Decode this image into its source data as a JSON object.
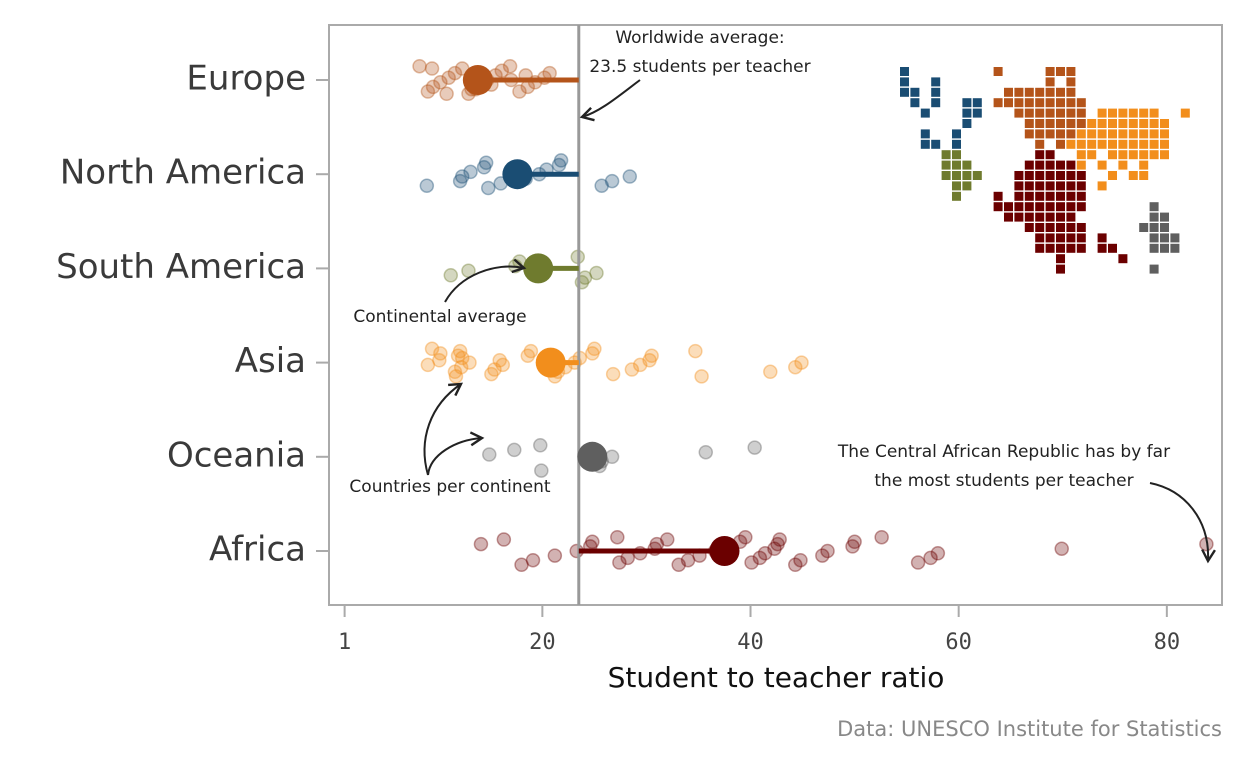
{
  "chart_data": {
    "type": "strip",
    "x_label": "Student to teacher ratio",
    "source": "Data: UNESCO Institute for Statistics",
    "xlim": [
      -0.5,
      85.3
    ],
    "xticks": [
      1,
      20,
      40,
      60,
      80
    ],
    "world_average": 23.5,
    "annotations": {
      "world": [
        "Worldwide average:",
        "23.5 students per teacher"
      ],
      "continental": "Continental average",
      "countries": "Countries per continent",
      "outlier": [
        "The Central African Republic has by far",
        "the most students per teacher"
      ]
    },
    "series": [
      {
        "name": "Europe",
        "color": "#b4541a",
        "average": 13.8,
        "values": [
          8.2,
          9.0,
          9.5,
          10.2,
          11.0,
          11.6,
          12.3,
          12.9,
          13.6,
          14.1,
          14.7,
          15.5,
          16.1,
          16.9,
          17.8,
          18.6,
          19.3,
          20.2,
          20.7,
          9.4,
          10.8,
          13.2,
          15.1,
          17.0,
          18.4
        ]
      },
      {
        "name": "North America",
        "color": "#1a4d73",
        "average": 17.6,
        "values": [
          8.9,
          12.1,
          12.3,
          13.1,
          14.4,
          14.6,
          14.8,
          16.0,
          18.4,
          19.7,
          20.4,
          21.6,
          21.8,
          25.7,
          26.7,
          28.4
        ]
      },
      {
        "name": "South America",
        "color": "#6f7b2e",
        "average": 19.6,
        "values": [
          11.2,
          12.9,
          17.4,
          17.8,
          23.4,
          23.8,
          24.1,
          25.2
        ]
      },
      {
        "name": "Asia",
        "color": "#f28e1c",
        "average": 20.8,
        "values": [
          9.0,
          10.1,
          11.9,
          12.1,
          11.7,
          11.6,
          12.2,
          13.0,
          12.3,
          10.2,
          9.4,
          15.1,
          15.4,
          16.2,
          15.9,
          18.6,
          18.9,
          21.2,
          21.5,
          22.2,
          23.1,
          23.6,
          24.8,
          25.0,
          26.8,
          28.6,
          29.4,
          30.3,
          30.5,
          34.7,
          35.3,
          41.9,
          44.3,
          44.9
        ]
      },
      {
        "name": "Oceania",
        "color": "#5f5f5f",
        "average": 24.8,
        "values": [
          14.9,
          17.3,
          19.8,
          19.9,
          25.5,
          25.7,
          26.7,
          35.7,
          40.4
        ]
      },
      {
        "name": "Africa",
        "color": "#6b0000",
        "average": 37.5,
        "values": [
          14.1,
          16.3,
          18.0,
          19.1,
          21.2,
          23.3,
          24.6,
          24.8,
          27.2,
          27.4,
          28.2,
          29.4,
          30.8,
          31.0,
          32.0,
          33.1,
          34.0,
          35.1,
          36.6,
          38.0,
          39.0,
          39.5,
          40.1,
          40.9,
          41.4,
          42.3,
          42.6,
          42.8,
          44.3,
          44.8,
          46.9,
          47.4,
          49.8,
          50.0,
          52.6,
          56.1,
          57.3,
          58.0,
          69.9,
          83.8
        ]
      }
    ]
  }
}
